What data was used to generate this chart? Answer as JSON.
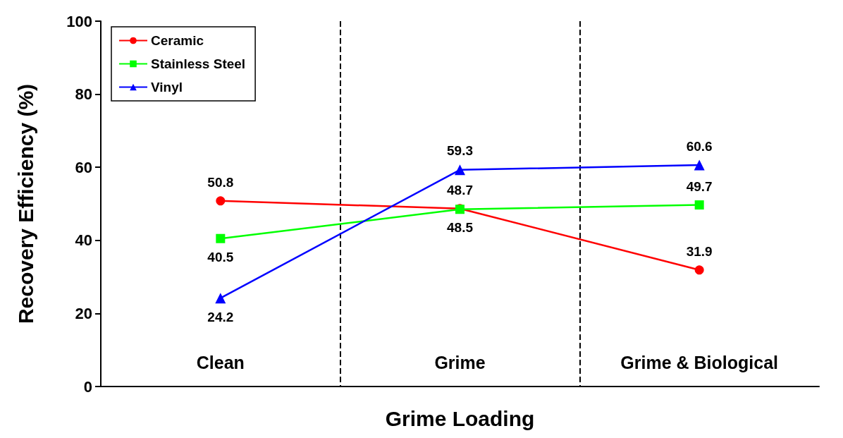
{
  "chart_data": {
    "type": "line",
    "xlabel": "Grime Loading",
    "ylabel": "Recovery Efficiency (%)",
    "categories": [
      "Clean",
      "Grime",
      "Grime & Biological"
    ],
    "series": [
      {
        "name": "Ceramic",
        "color": "#ff0000",
        "marker": "circle",
        "values": [
          50.8,
          48.7,
          31.9
        ]
      },
      {
        "name": "Stainless Steel",
        "color": "#00ff00",
        "marker": "square",
        "values": [
          40.5,
          48.5,
          49.7
        ]
      },
      {
        "name": "Vinyl",
        "color": "#0000ff",
        "marker": "triangle",
        "values": [
          24.2,
          59.3,
          60.6
        ]
      }
    ],
    "ylim": [
      0,
      100
    ],
    "yticks": [
      0,
      20,
      40,
      60,
      80,
      100
    ],
    "grid": "x",
    "legend": "top left",
    "data_labels": true
  }
}
